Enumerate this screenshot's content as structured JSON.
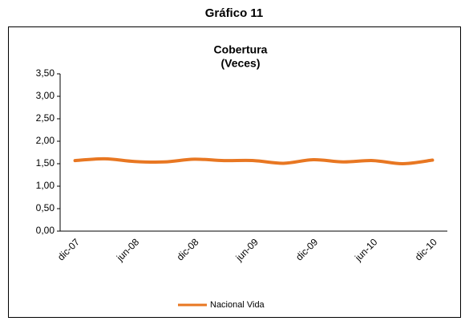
{
  "heading": "Gráfico 11",
  "chart_data": {
    "type": "line",
    "title": "Cobertura",
    "subtitle": "(Veces)",
    "categories": [
      "dic-07",
      null,
      "jun-08",
      null,
      "dic-08",
      null,
      "jun-09",
      null,
      "dic-09",
      null,
      "jun-10",
      null,
      "dic-10"
    ],
    "series": [
      {
        "name": "Nacional Vida",
        "color": "#e87722",
        "values": [
          1.57,
          1.61,
          1.55,
          1.54,
          1.6,
          1.57,
          1.57,
          1.51,
          1.59,
          1.54,
          1.57,
          1.5,
          1.58
        ]
      }
    ],
    "ylim": [
      0,
      3.5
    ],
    "yticks": [
      {
        "value": 0,
        "label": "0,00"
      },
      {
        "value": 0.5,
        "label": "0,50"
      },
      {
        "value": 1,
        "label": "1,00"
      },
      {
        "value": 1.5,
        "label": "1,50"
      },
      {
        "value": 2,
        "label": "2,00"
      },
      {
        "value": 2.5,
        "label": "2,50"
      },
      {
        "value": 3,
        "label": "3,00"
      },
      {
        "value": 3.5,
        "label": "3,50"
      }
    ],
    "legend": "bottom",
    "smooth": true
  }
}
